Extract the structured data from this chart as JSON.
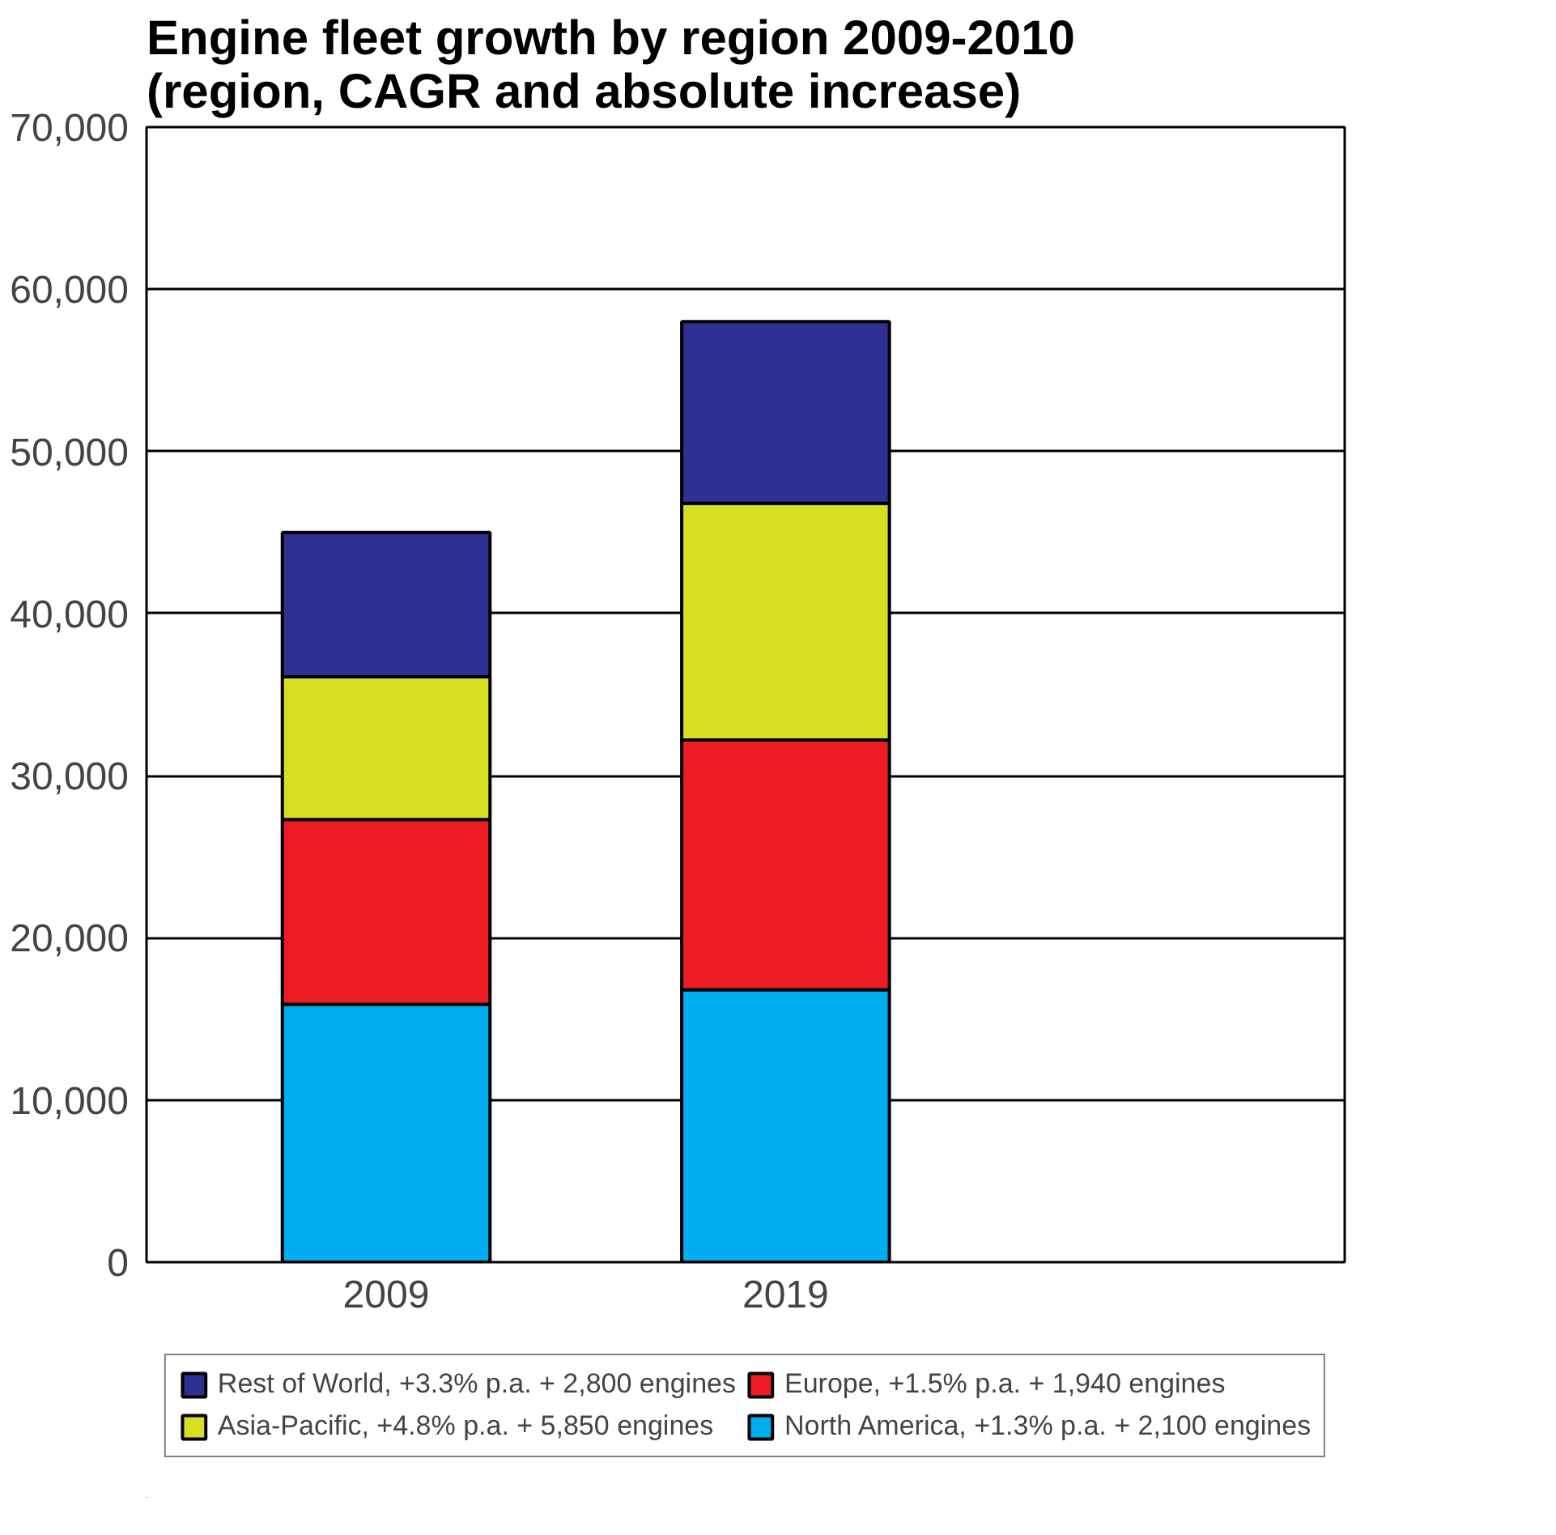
{
  "chart_data": {
    "type": "bar",
    "stacked": true,
    "title": "Engine fleet growth by region 2009-2010\n(region, CAGR and absolute increase)",
    "categories": [
      "2009",
      "2019"
    ],
    "series": [
      {
        "name": "North America, +1.3% p.a. + 2,100 engines",
        "color": "#00aeef",
        "values": [
          15900,
          16800
        ]
      },
      {
        "name": "Europe, +1.5% p.a. + 1,940 engines",
        "color": "#ed1c24",
        "values": [
          11400,
          15400
        ]
      },
      {
        "name": "Asia-Pacific, +4.8% p.a. + 5,850 engines",
        "color": "#d7df23",
        "values": [
          8800,
          14600
        ]
      },
      {
        "name": "Rest of World, +3.3% p.a. + 2,800 engines",
        "color": "#2e3192",
        "values": [
          8900,
          11200
        ]
      }
    ],
    "ylim": [
      0,
      70000
    ],
    "yticks": [
      {
        "value": 0,
        "label": "0"
      },
      {
        "value": 10000,
        "label": "10,000"
      },
      {
        "value": 20000,
        "label": "20,000"
      },
      {
        "value": 30000,
        "label": "30,000"
      },
      {
        "value": 40000,
        "label": "40,000"
      },
      {
        "value": 50000,
        "label": "50,000"
      },
      {
        "value": 60000,
        "label": "60,000"
      },
      {
        "value": 70000,
        "label": "70,000"
      }
    ],
    "grid": "y",
    "legend": "bottom"
  }
}
